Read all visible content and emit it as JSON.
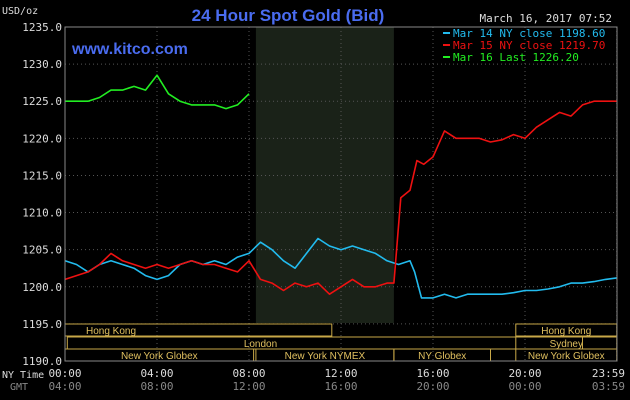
{
  "chart_data": {
    "type": "line",
    "title": "24 Hour Spot Gold (Bid)",
    "ylabel": "USD/oz",
    "watermark": "www.kitco.com",
    "timestamp": "March 16, 2017 07:52",
    "ylim": [
      1190,
      1235
    ],
    "y_ticks": [
      "1235.0",
      "1230.0",
      "1225.0",
      "1220.0",
      "1215.0",
      "1210.0",
      "1205.0",
      "1200.0",
      "1195.0",
      "1190.0"
    ],
    "x_ticks_ny": [
      "00:00",
      "04:00",
      "08:00",
      "12:00",
      "16:00",
      "20:00",
      "23:59"
    ],
    "x_ticks_gmt": [
      "04:00",
      "08:00",
      "12:00",
      "16:00",
      "20:00",
      "00:00",
      "03:59"
    ],
    "x_axis_label_ny": "NY Time",
    "x_axis_label_gmt": "GMT",
    "grid": true,
    "legend_position": "top-right",
    "highlight_band_hours": [
      8.3,
      14.3
    ],
    "sessions": [
      {
        "label": "Hong Kong",
        "row": 0,
        "start": 0,
        "end": 11.6
      },
      {
        "label": "Sydney",
        "row": 1,
        "start": 19.6,
        "end": 23.99
      },
      {
        "label": "Hong Kong",
        "row": 0,
        "start": 19.6,
        "end": 23.99
      },
      {
        "label": "London",
        "row": 1,
        "start": 0.1,
        "end": 22.5
      },
      {
        "label": "New York Globex",
        "row": 2,
        "start": 0,
        "end": 8.2
      },
      {
        "label": "New York NYMEX",
        "row": 2,
        "start": 8.3,
        "end": 14.3
      },
      {
        "label": "NY Globex",
        "row": 2,
        "start": 14.3,
        "end": 18.5
      },
      {
        "label": "New York Globex",
        "row": 2,
        "start": 19.6,
        "end": 23.99
      }
    ],
    "series": [
      {
        "name": "Mar 14 NY close 1198.60",
        "color": "#22bbee",
        "x": [
          0,
          0.5,
          1,
          1.5,
          2,
          2.5,
          3,
          3.5,
          4,
          4.5,
          5,
          5.5,
          6,
          6.5,
          7,
          7.5,
          8,
          8.5,
          9,
          9.5,
          10,
          10.5,
          11,
          11.5,
          12,
          12.5,
          13,
          13.5,
          14,
          14.5,
          15,
          15.2,
          15.5,
          16,
          16.5,
          17,
          17.5,
          18,
          18.5,
          19,
          19.5,
          20,
          20.5,
          21,
          21.5,
          22,
          22.5,
          23,
          23.5,
          23.99
        ],
        "values": [
          1203.5,
          1203.0,
          1202.0,
          1203.0,
          1203.5,
          1203.0,
          1202.5,
          1201.5,
          1201.0,
          1201.5,
          1203.0,
          1203.5,
          1203.0,
          1203.5,
          1203.0,
          1204.0,
          1204.5,
          1206.0,
          1205.0,
          1203.5,
          1202.5,
          1204.5,
          1206.5,
          1205.5,
          1205.0,
          1205.5,
          1205.0,
          1204.5,
          1203.5,
          1203.0,
          1203.5,
          1202.0,
          1198.5,
          1198.5,
          1199.0,
          1198.5,
          1199.0,
          1199.0,
          1199.0,
          1199.0,
          1199.2,
          1199.5,
          1199.5,
          1199.7,
          1200.0,
          1200.5,
          1200.5,
          1200.7,
          1201.0,
          1201.2
        ]
      },
      {
        "name": "Mar 15 NY close 1219.70",
        "color": "#ee1111",
        "x": [
          0,
          0.5,
          1,
          1.5,
          2,
          2.5,
          3,
          3.5,
          4,
          4.5,
          5,
          5.5,
          6,
          6.5,
          7,
          7.5,
          8,
          8.5,
          9,
          9.5,
          10,
          10.5,
          11,
          11.5,
          12,
          12.5,
          13,
          13.5,
          14,
          14.3,
          14.6,
          15,
          15.3,
          15.6,
          16,
          16.5,
          17,
          17.5,
          18,
          18.5,
          19,
          19.5,
          20,
          20.5,
          21,
          21.5,
          22,
          22.5,
          23,
          23.5,
          23.99
        ],
        "values": [
          1201.0,
          1201.5,
          1202.0,
          1203.0,
          1204.5,
          1203.5,
          1203.0,
          1202.5,
          1203.0,
          1202.5,
          1203.0,
          1203.5,
          1203.0,
          1203.0,
          1202.5,
          1202.0,
          1203.5,
          1201.0,
          1200.5,
          1199.5,
          1200.5,
          1200.0,
          1200.5,
          1199.0,
          1200.0,
          1201.0,
          1200.0,
          1200.0,
          1200.5,
          1200.5,
          1212.0,
          1213.0,
          1217.0,
          1216.5,
          1217.5,
          1221.0,
          1220.0,
          1220.0,
          1220.0,
          1219.5,
          1219.8,
          1220.5,
          1220.0,
          1221.5,
          1222.5,
          1223.5,
          1223.0,
          1224.5,
          1225.0,
          1225.0,
          1225.0
        ]
      },
      {
        "name": "Mar 16 Last 1226.20",
        "color": "#22ee22",
        "x": [
          0,
          0.5,
          1,
          1.5,
          2,
          2.5,
          3,
          3.5,
          4,
          4.5,
          5,
          5.5,
          6,
          6.5,
          7,
          7.5,
          8
        ],
        "values": [
          1225.0,
          1225.0,
          1225.0,
          1225.5,
          1226.5,
          1226.5,
          1227.0,
          1226.5,
          1228.5,
          1226.0,
          1225.0,
          1224.5,
          1224.5,
          1224.5,
          1224.0,
          1224.5,
          1226.0
        ]
      }
    ]
  }
}
